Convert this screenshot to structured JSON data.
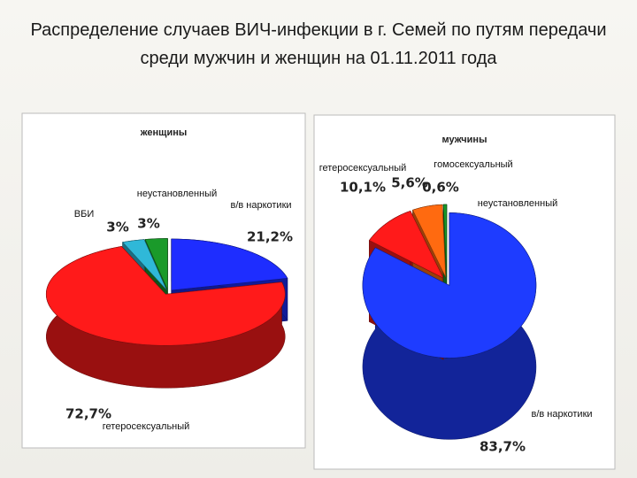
{
  "title": "Распределение случаев ВИЧ-инфекции в г. Семей по путям передачи среди мужчин и женщин на 01.11.2011 года",
  "chart_data": [
    {
      "type": "pie",
      "title": "женщины",
      "categories": [
        "в/в наркотики",
        "гетеросексуальный",
        "ВБИ",
        "неустановленный"
      ],
      "values": [
        21.2,
        72.7,
        3,
        3
      ],
      "value_labels": [
        "21,2%",
        "72,7%",
        "3%",
        "3%"
      ],
      "colors": [
        "#1e2dff",
        "#ff1a1a",
        "#2fb8d8",
        "#1a9a2a"
      ]
    },
    {
      "type": "pie",
      "title": "мужчины",
      "categories": [
        "в/в наркотики",
        "гетеросексуальный",
        "гомосексуальный",
        "неустановленный"
      ],
      "values": [
        83.7,
        10.1,
        5.6,
        0.6
      ],
      "value_labels": [
        "83,7%",
        "10,1%",
        "5,6%",
        "0,6%"
      ],
      "colors": [
        "#1e3cff",
        "#ff1a1a",
        "#ff6a10",
        "#1a9a2a"
      ]
    }
  ]
}
